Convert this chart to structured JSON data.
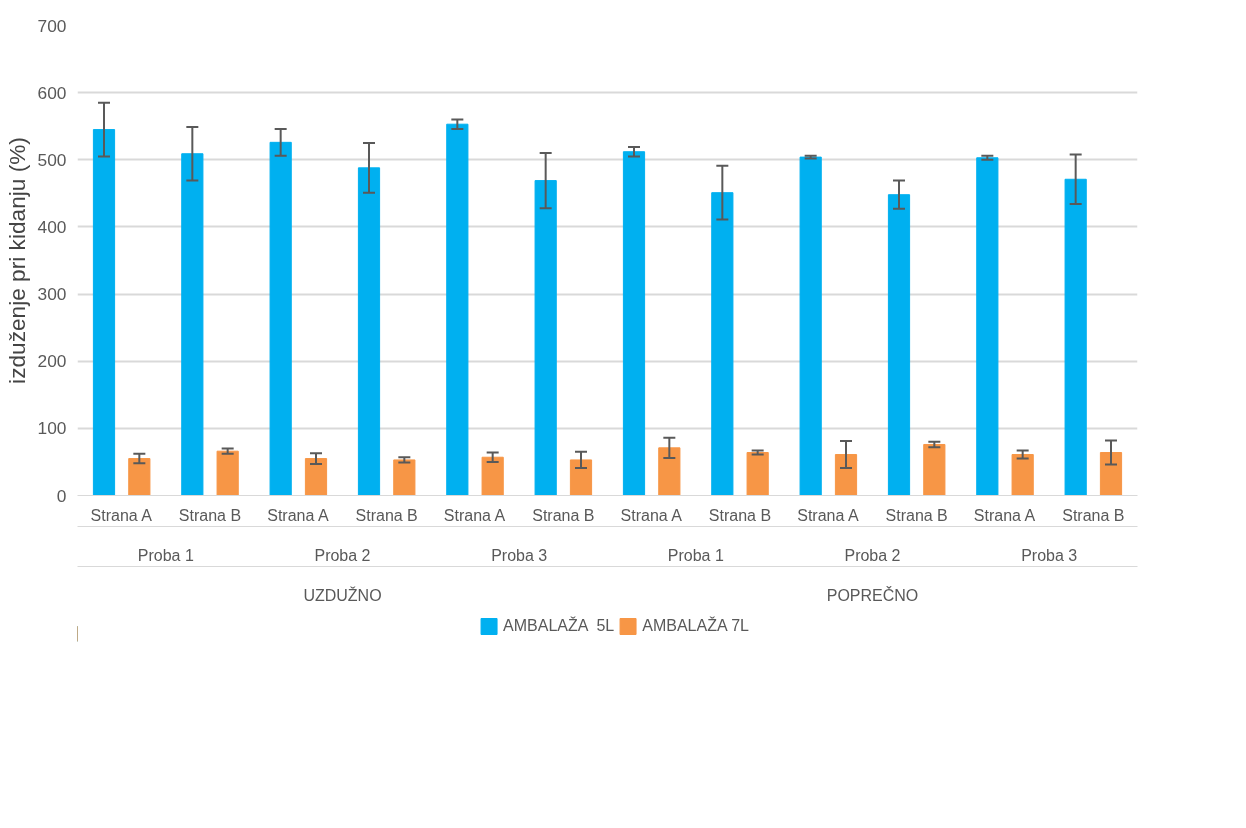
{
  "chart_data": {
    "type": "bar",
    "ylabel": "izduženje pri kidanju (%)",
    "categories": [
      "Strana A",
      "Strana B",
      "Strana A",
      "Strana B",
      "Strana A",
      "Strana B",
      "Strana A",
      "Strana B",
      "Strana A",
      "Strana B",
      "Strana A",
      "Strana B"
    ],
    "annotations": [
      "Proba 1",
      "Proba 2",
      "Proba 3",
      "Proba 1",
      "Proba 2",
      "Proba 3",
      "UZDUŽNO",
      "POPREČNO"
    ],
    "series": [
      {
        "name": "AMBALAŽA  5L",
        "color": "#00b0f0",
        "values": [
          545,
          509,
          526,
          488,
          553,
          469,
          512,
          451,
          504,
          448,
          503,
          471
        ],
        "errors": [
          40,
          40,
          20,
          37,
          7,
          41,
          7,
          40,
          2,
          21,
          3,
          37
        ]
      },
      {
        "name": "AMBALAŽA 7L",
        "color": "#f79646",
        "values": [
          55,
          66,
          55,
          53,
          57,
          53,
          71,
          64,
          61,
          76,
          61,
          64
        ],
        "errors": [
          7,
          4,
          8,
          4,
          7,
          12,
          15,
          3,
          20,
          4,
          6,
          18
        ]
      }
    ],
    "ylim": [
      0,
      700
    ],
    "yticks": [
      0,
      100,
      200,
      300,
      400,
      500,
      600,
      700
    ],
    "grid": "y",
    "legend": "bottom"
  }
}
